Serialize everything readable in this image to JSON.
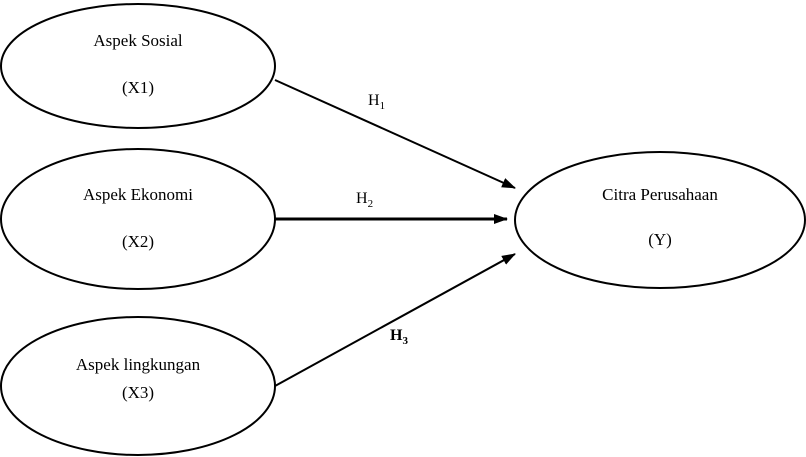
{
  "diagram": {
    "nodes": {
      "x1": {
        "name": "Aspek Sosial",
        "code": "(X1)"
      },
      "x2": {
        "name": "Aspek Ekonomi",
        "code": "(X2)"
      },
      "x3": {
        "name": "Aspek lingkungan",
        "code": "(X3)"
      },
      "y": {
        "name": "Citra Perusahaan",
        "code": "(Y)"
      }
    },
    "hypotheses": {
      "h1": {
        "letter": "H",
        "sub": "1"
      },
      "h2": {
        "letter": "H",
        "sub": "2"
      },
      "h3": {
        "letter": "H",
        "sub": "3"
      }
    },
    "colors": {
      "stroke": "#000000",
      "background": "#ffffff"
    }
  }
}
